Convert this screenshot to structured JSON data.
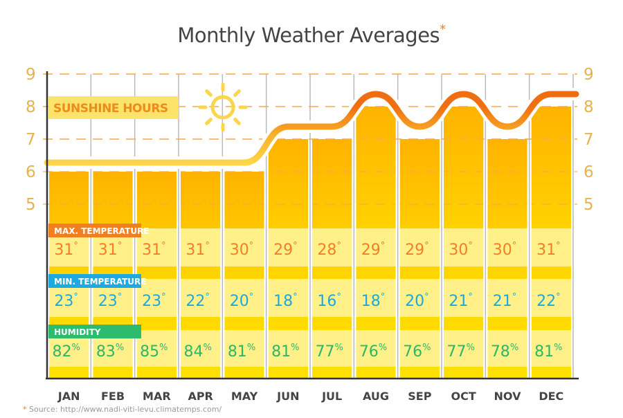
{
  "title": "Monthly Weather Averages",
  "title_marker": "*",
  "source": {
    "marker": "*",
    "text": "Source: http://www.nadi-viti-levu.climatemps.com/"
  },
  "colors": {
    "sunshine_label": "#f08a1c",
    "sunshine_label_bg": "#fce36a",
    "max_temp": "#ef7f2a",
    "max_temp_label_bg": "#f07f22",
    "min_temp": "#1fa7d8",
    "min_temp_label_bg": "#1ea9e1",
    "humidity": "#2bb768",
    "humidity_label_bg": "#2dbb6e",
    "bar_top_high": "#ffb400",
    "bar_bottom": "#ffde00",
    "band": "#fff08a",
    "grid_dash": "#f5a94a",
    "axis_tick": "#e8b24a"
  },
  "chart_data": {
    "type": "bar",
    "title": "Monthly Weather Averages",
    "categories": [
      "JAN",
      "FEB",
      "MAR",
      "APR",
      "MAY",
      "JUN",
      "JUL",
      "AUG",
      "SEP",
      "OCT",
      "NOV",
      "DEC"
    ],
    "series": [
      {
        "name": "SUNSHINE HOURS",
        "values": [
          6,
          6,
          6,
          6,
          6,
          7,
          7,
          8,
          7,
          8,
          7,
          8
        ]
      },
      {
        "name": "MAX. TEMPERATURE",
        "unit": "°",
        "values": [
          31,
          31,
          31,
          31,
          30,
          29,
          28,
          29,
          29,
          30,
          30,
          31
        ]
      },
      {
        "name": "MIN. TEMPERATURE",
        "unit": "°",
        "values": [
          23,
          23,
          23,
          22,
          20,
          18,
          16,
          18,
          20,
          21,
          21,
          22
        ]
      },
      {
        "name": "HUMIDITY",
        "unit": "%",
        "values": [
          82,
          83,
          85,
          84,
          81,
          81,
          77,
          76,
          76,
          77,
          78,
          81
        ]
      }
    ],
    "yticks": [
      5,
      6,
      7,
      8,
      9
    ],
    "ylim": [
      5,
      9
    ],
    "ylabel_left": "",
    "ylabel_right": "",
    "xlabel": "",
    "grid": true,
    "legend": "inline-labels"
  }
}
